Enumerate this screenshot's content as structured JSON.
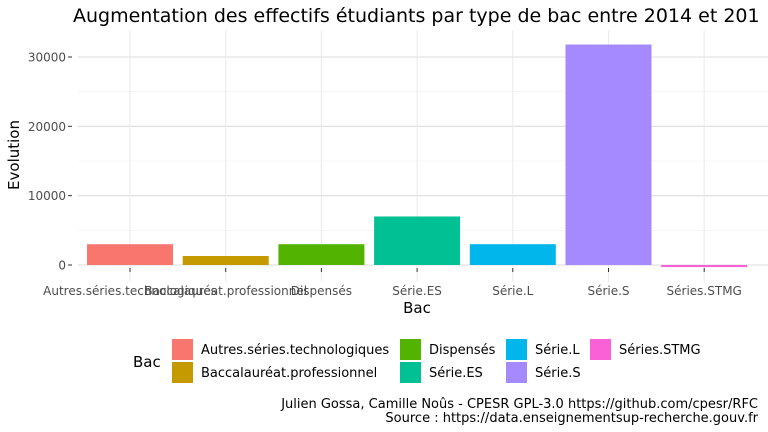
{
  "chart_data": {
    "type": "bar",
    "title": "Augmentation des effectifs étudiants par type de bac entre 2014 et 201",
    "xlabel": "Bac",
    "ylabel": "Evolution",
    "ylim": [
      -500,
      32000
    ],
    "yticks": [
      0,
      10000,
      20000,
      30000
    ],
    "ytick_labels": [
      "0",
      "10000",
      "20000",
      "30000"
    ],
    "grid": true,
    "categories": [
      "Autres.séries.technologiques",
      "Baccalauréat.professionnel",
      "Dispensés",
      "Série.ES",
      "Série.L",
      "Série.S",
      "Séries.STMG"
    ],
    "values": [
      3000,
      1300,
      3000,
      7000,
      3000,
      31800,
      -300
    ],
    "colors": [
      "#F8766D",
      "#C49A00",
      "#53B400",
      "#00C094",
      "#00B6EB",
      "#A58AFF",
      "#FB61D7"
    ],
    "legend": {
      "title": "Bac",
      "position": "bottom",
      "items": [
        "Autres.séries.technologiques",
        "Baccalauréat.professionnel",
        "Dispensés",
        "Série.ES",
        "Série.L",
        "Série.S",
        "Séries.STMG"
      ]
    }
  },
  "caption": {
    "line1": "Julien Gossa, Camille Noûs - CPESR GPL-3.0 https://github.com/cpesr/RFC",
    "line2": "Source : https://data.enseignementsup-recherche.gouv.fr"
  }
}
